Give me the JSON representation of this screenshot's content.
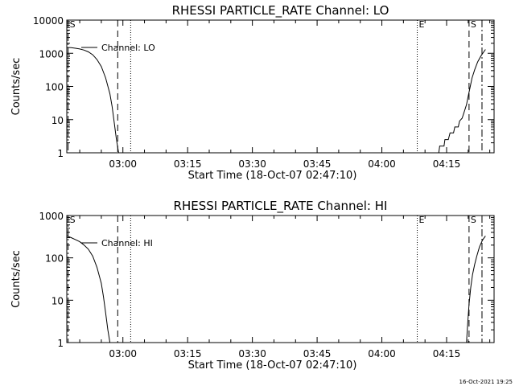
{
  "footer": {
    "timestamp": "16-Oct-2021 19:25"
  },
  "chart_data": [
    {
      "type": "line",
      "title": "RHESSI PARTICLE_RATE Channel: LO",
      "xlabel": "Start Time (18-Oct-07 02:47:10)",
      "ylabel": "Counts/sec",
      "yscale": "log",
      "x_unit": "minutes after 02:47:10",
      "xlim": [
        0,
        99
      ],
      "ylim": [
        1,
        10000
      ],
      "x_ticks": [
        {
          "x": 13,
          "label": "03:00"
        },
        {
          "x": 28,
          "label": "03:15"
        },
        {
          "x": 43,
          "label": "03:30"
        },
        {
          "x": 58,
          "label": "03:45"
        },
        {
          "x": 73,
          "label": "04:00"
        },
        {
          "x": 88,
          "label": "04:15"
        }
      ],
      "y_ticks": [
        {
          "y": 1,
          "label": "1"
        },
        {
          "y": 10,
          "label": "10"
        },
        {
          "y": 100,
          "label": "100"
        },
        {
          "y": 1000,
          "label": "1000"
        },
        {
          "y": 10000,
          "label": "10000"
        }
      ],
      "legend": {
        "label": "Channel: LO",
        "position": "top-left"
      },
      "markers": [
        {
          "x": 0.3,
          "label": "S",
          "style": "dash-dot"
        },
        {
          "x": 11.8,
          "label": "",
          "style": "dashed"
        },
        {
          "x": 14.8,
          "label": "",
          "style": "dotted"
        },
        {
          "x": 81.2,
          "label": "E",
          "style": "dotted"
        },
        {
          "x": 93.2,
          "label": "S",
          "style": "dashed"
        },
        {
          "x": 96.2,
          "label": "",
          "style": "dash-dot"
        }
      ],
      "series": [
        {
          "name": "Channel: LO",
          "segments": [
            [
              [
                0,
                1500
              ],
              [
                1,
                1480
              ],
              [
                2,
                1420
              ],
              [
                3,
                1350
              ],
              [
                4,
                1250
              ],
              [
                5,
                1100
              ],
              [
                6,
                900
              ],
              [
                7,
                650
              ],
              [
                8,
                400
              ],
              [
                9,
                180
              ],
              [
                10,
                60
              ],
              [
                10.5,
                25
              ],
              [
                11,
                8
              ],
              [
                11.5,
                2.5
              ],
              [
                12,
                1
              ]
            ],
            [
              [
                86.2,
                1
              ],
              [
                86.4,
                1.6
              ],
              [
                87.4,
                1.6
              ],
              [
                87.6,
                2.5
              ],
              [
                88.4,
                2.5
              ],
              [
                88.8,
                4
              ],
              [
                89.6,
                4
              ],
              [
                89.9,
                6
              ],
              [
                90.7,
                6
              ],
              [
                91,
                9
              ],
              [
                91.6,
                11
              ],
              [
                92,
                16
              ],
              [
                92.6,
                28
              ],
              [
                93,
                50
              ],
              [
                93.4,
                90
              ],
              [
                93.9,
                180
              ],
              [
                94.5,
                320
              ],
              [
                95.2,
                550
              ],
              [
                96,
                850
              ],
              [
                97,
                1300
              ]
            ]
          ]
        }
      ]
    },
    {
      "type": "line",
      "title": "RHESSI PARTICLE_RATE Channel: HI",
      "xlabel": "Start Time (18-Oct-07 02:47:10)",
      "ylabel": "Counts/sec",
      "yscale": "log",
      "x_unit": "minutes after 02:47:10",
      "xlim": [
        0,
        99
      ],
      "ylim": [
        1,
        1000
      ],
      "x_ticks": [
        {
          "x": 13,
          "label": "03:00"
        },
        {
          "x": 28,
          "label": "03:15"
        },
        {
          "x": 43,
          "label": "03:30"
        },
        {
          "x": 58,
          "label": "03:45"
        },
        {
          "x": 73,
          "label": "04:00"
        },
        {
          "x": 88,
          "label": "04:15"
        }
      ],
      "y_ticks": [
        {
          "y": 1,
          "label": "1"
        },
        {
          "y": 10,
          "label": "10"
        },
        {
          "y": 100,
          "label": "100"
        },
        {
          "y": 1000,
          "label": "1000"
        }
      ],
      "legend": {
        "label": "Channel: HI",
        "position": "top-left"
      },
      "markers": [
        {
          "x": 0.3,
          "label": "S",
          "style": "dash-dot"
        },
        {
          "x": 11.8,
          "label": "",
          "style": "dashed"
        },
        {
          "x": 14.8,
          "label": "",
          "style": "dotted"
        },
        {
          "x": 81.2,
          "label": "E",
          "style": "dotted"
        },
        {
          "x": 93.2,
          "label": "S",
          "style": "dashed"
        },
        {
          "x": 96.2,
          "label": "",
          "style": "dash-dot"
        }
      ],
      "series": [
        {
          "name": "Channel: HI",
          "segments": [
            [
              [
                0,
                330
              ],
              [
                1,
                300
              ],
              [
                2,
                270
              ],
              [
                3,
                240
              ],
              [
                4,
                200
              ],
              [
                5,
                160
              ],
              [
                6,
                110
              ],
              [
                7,
                60
              ],
              [
                8,
                25
              ],
              [
                8.5,
                12
              ],
              [
                9,
                5
              ],
              [
                9.5,
                2
              ],
              [
                10,
                1
              ]
            ],
            [
              [
                92.6,
                1
              ],
              [
                92.9,
                3
              ],
              [
                93.2,
                8
              ],
              [
                93.6,
                20
              ],
              [
                94,
                40
              ],
              [
                94.5,
                70
              ],
              [
                95,
                110
              ],
              [
                95.6,
                180
              ],
              [
                96.3,
                260
              ],
              [
                97,
                330
              ]
            ]
          ]
        }
      ]
    }
  ]
}
